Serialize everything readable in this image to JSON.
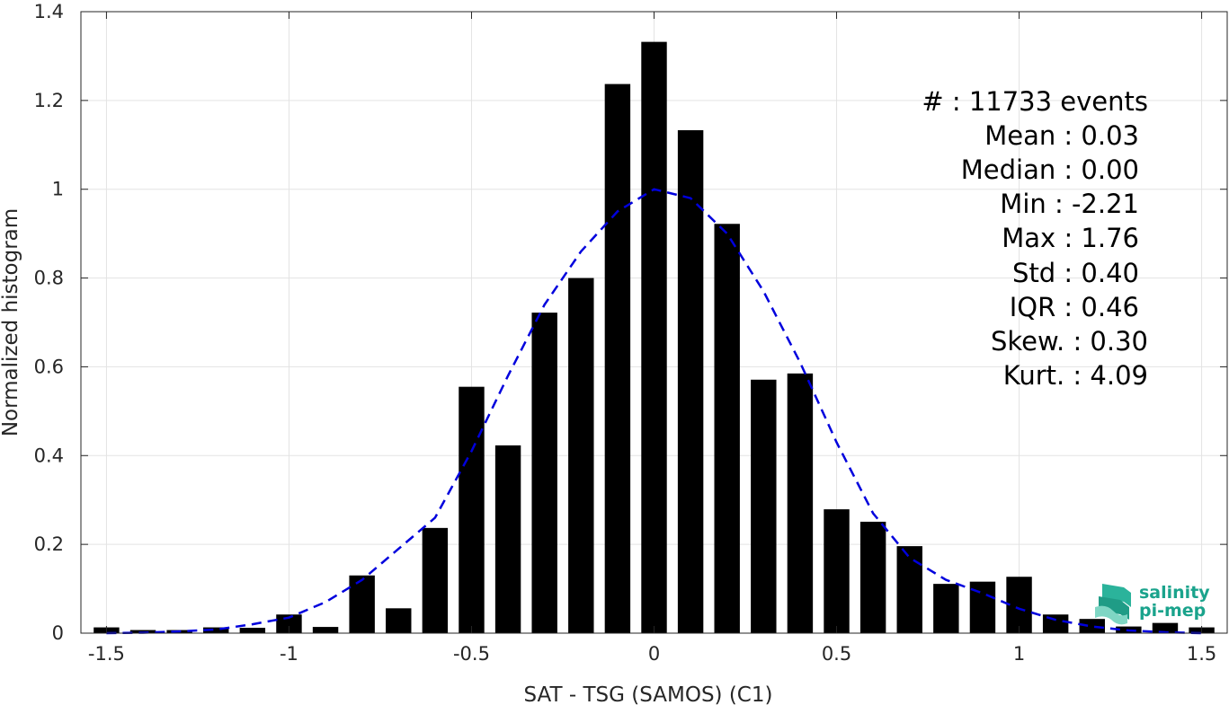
{
  "chart_data": {
    "type": "bar",
    "xlabel": "SAT - TSG (SAMOS) (C1)",
    "ylabel": "Normalized histogram",
    "xlim": [
      -1.57,
      1.57
    ],
    "ylim": [
      0,
      1.4
    ],
    "xticks": [
      -1.5,
      -1,
      -0.5,
      0,
      0.5,
      1,
      1.5
    ],
    "xtick_labels": [
      "-1.5",
      "-1",
      "-0.5",
      "0",
      "0.5",
      "1",
      "1.5"
    ],
    "yticks": [
      0,
      0.2,
      0.4,
      0.6,
      0.8,
      1,
      1.2,
      1.4
    ],
    "ytick_labels": [
      "0",
      "0.2",
      "0.4",
      "0.6",
      "0.8",
      "1",
      "1.2",
      "1.4"
    ],
    "grid": true,
    "bar_width": 0.07,
    "bar_color": "#000000",
    "x": [
      -1.5,
      -1.4,
      -1.3,
      -1.2,
      -1.1,
      -1.0,
      -0.9,
      -0.8,
      -0.7,
      -0.6,
      -0.5,
      -0.4,
      -0.3,
      -0.2,
      -0.1,
      0.0,
      0.1,
      0.2,
      0.3,
      0.4,
      0.5,
      0.6,
      0.7,
      0.8,
      0.9,
      1.0,
      1.1,
      1.2,
      1.3,
      1.4,
      1.5
    ],
    "values": [
      0.013,
      0.007,
      0.007,
      0.013,
      0.012,
      0.042,
      0.014,
      0.13,
      0.056,
      0.237,
      0.555,
      0.423,
      0.722,
      0.8,
      1.237,
      1.332,
      1.133,
      0.922,
      0.571,
      0.585,
      0.279,
      0.251,
      0.196,
      0.111,
      0.116,
      0.127,
      0.042,
      0.032,
      0.015,
      0.023,
      0.013
    ],
    "fit": {
      "color": "#0000dd",
      "style": "dashed",
      "x": [
        -1.5,
        -1.4,
        -1.3,
        -1.2,
        -1.1,
        -1.0,
        -0.9,
        -0.8,
        -0.7,
        -0.6,
        -0.5,
        -0.4,
        -0.3,
        -0.2,
        -0.1,
        0.0,
        0.1,
        0.2,
        0.3,
        0.4,
        0.5,
        0.6,
        0.7,
        0.8,
        0.9,
        1.0,
        1.1,
        1.2,
        1.3,
        1.4,
        1.5
      ],
      "y": [
        0.0,
        0.001,
        0.004,
        0.008,
        0.02,
        0.035,
        0.07,
        0.12,
        0.19,
        0.26,
        0.41,
        0.58,
        0.74,
        0.86,
        0.95,
        1.0,
        0.98,
        0.9,
        0.77,
        0.61,
        0.43,
        0.27,
        0.17,
        0.12,
        0.09,
        0.055,
        0.03,
        0.015,
        0.006,
        0.002,
        0.0
      ]
    }
  },
  "stats": {
    "count": "#  : 11733 events",
    "mean": "Mean : 0.03",
    "median": "Median : 0.00",
    "min": "Min : -2.21",
    "max": "Max : 1.76",
    "std": "Std : 0.40",
    "iqr": "IQR : 0.46",
    "skew": "Skew. : 0.30",
    "kurt": "Kurt. : 4.09"
  },
  "logo": {
    "line1": "salinity",
    "line2": "pi-mep",
    "color": "#1aa38c"
  }
}
